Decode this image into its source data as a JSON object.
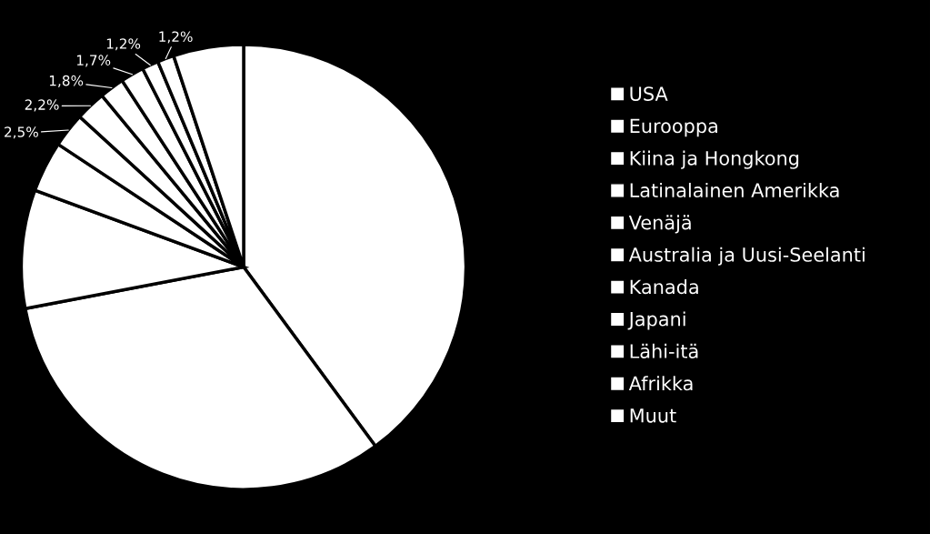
{
  "chart_data": {
    "type": "pie",
    "categories": [
      "USA",
      "Eurooppa",
      "Kiina ja Hongkong",
      "Latinalainen Amerikka",
      "Venäjä",
      "Australia ja Uusi-Seelanti",
      "Kanada",
      "Japani",
      "Lähi-itä",
      "Afrikka",
      "Muut"
    ],
    "values": [
      39.9,
      32.1,
      8.6,
      3.7,
      2.5,
      2.2,
      1.8,
      1.7,
      1.2,
      1.2,
      5.1
    ],
    "colors": [
      "#ffffff",
      "#ffffff",
      "#ffffff",
      "#ffffff",
      "#ffffff",
      "#ffffff",
      "#ffffff",
      "#ffffff",
      "#ffffff",
      "#ffffff",
      "#ffffff"
    ],
    "value_labels": [
      null,
      null,
      null,
      null,
      "2,5%",
      "2,2%",
      "1,8%",
      "1,7%",
      "1,2%",
      "1,2%",
      null
    ],
    "legend": "right"
  }
}
